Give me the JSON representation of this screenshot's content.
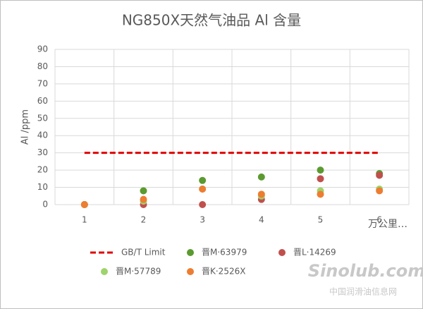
{
  "chart_data": {
    "type": "scatter",
    "title": "NG850X天然气油品  Al 含量",
    "y_label": "Al /ppm",
    "x_label": "万公里…",
    "categories": [
      "1",
      "2",
      "3",
      "4",
      "5",
      "6"
    ],
    "series": [
      {
        "name": "GB/T Limit",
        "color": "#e00000",
        "style": "dashed-line",
        "values": [
          30,
          30,
          30,
          30,
          30,
          30
        ]
      },
      {
        "name": "晋M·63979",
        "color": "#5b9a30",
        "style": "marker",
        "values": [
          0,
          8,
          14,
          16,
          20,
          18
        ]
      },
      {
        "name": "晋L·14269",
        "color": "#c0504d",
        "style": "marker",
        "values": [
          0,
          0,
          0,
          3,
          15,
          17
        ]
      },
      {
        "name": "晋M·57789",
        "color": "#9fd36b",
        "style": "marker",
        "values": [
          0,
          2,
          9,
          5,
          8,
          9
        ]
      },
      {
        "name": "晋K·2526X",
        "color": "#ed7d31",
        "style": "marker",
        "values": [
          0,
          3,
          9,
          6,
          6,
          8
        ]
      }
    ],
    "ylim": [
      0,
      90
    ],
    "yticks": [
      0,
      10,
      20,
      30,
      40,
      50,
      60,
      70,
      80,
      90
    ],
    "grid": true,
    "legend": "bottom",
    "watermark": [
      "Sinolub.com",
      "中国润滑油信息网"
    ]
  }
}
